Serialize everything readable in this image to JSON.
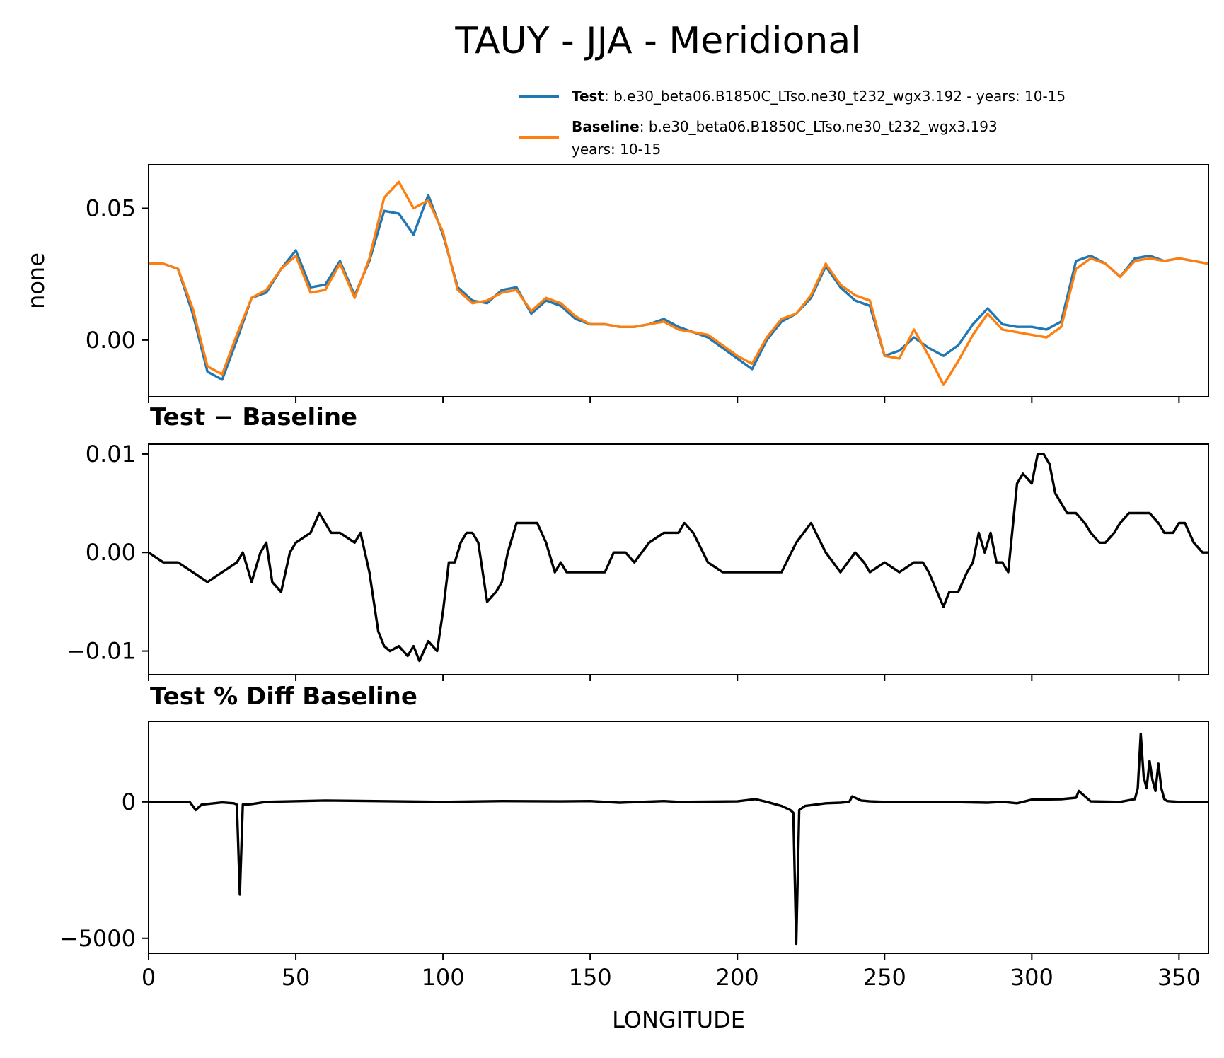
{
  "figure": {
    "title": "TAUY - JJA - Meridional"
  },
  "colors": {
    "test": "#1f77b4",
    "baseline": "#ff7f0e",
    "diff": "#000000"
  },
  "legend": {
    "test_bold": "Test",
    "test_text": ": b.e30_beta06.B1850C_LTso.ne30_t232_wgx3.192 - years: 10-15",
    "baseline_bold": "Baseline",
    "baseline_text": ": b.e30_beta06.B1850C_LTso.ne30_t232_wgx3.193",
    "baseline_text2": "years: 10-15"
  },
  "chart_data": [
    {
      "type": "line",
      "ylabel": "none",
      "xlim": [
        0,
        360
      ],
      "ylim": [
        -0.0215,
        0.0665
      ],
      "yticks": [
        0.0,
        0.05
      ],
      "ytick_labels": [
        "0.00",
        "0.05"
      ],
      "series": [
        {
          "name": "Test",
          "x": [
            0,
            5,
            10,
            15,
            20,
            25,
            30,
            35,
            40,
            45,
            50,
            55,
            60,
            65,
            70,
            75,
            80,
            85,
            90,
            95,
            100,
            105,
            110,
            115,
            120,
            125,
            130,
            135,
            140,
            145,
            150,
            155,
            160,
            165,
            170,
            175,
            180,
            185,
            190,
            195,
            200,
            205,
            210,
            215,
            220,
            225,
            230,
            235,
            240,
            245,
            250,
            255,
            260,
            265,
            270,
            275,
            280,
            285,
            290,
            295,
            300,
            305,
            310,
            315,
            320,
            325,
            330,
            335,
            340,
            345,
            350,
            355,
            360
          ],
          "values": [
            0.029,
            0.029,
            0.027,
            0.01,
            -0.012,
            -0.015,
            0.0,
            0.016,
            0.018,
            0.027,
            0.034,
            0.02,
            0.021,
            0.03,
            0.017,
            0.03,
            0.049,
            0.048,
            0.04,
            0.055,
            0.04,
            0.02,
            0.015,
            0.014,
            0.019,
            0.02,
            0.01,
            0.015,
            0.013,
            0.008,
            0.006,
            0.006,
            0.005,
            0.005,
            0.006,
            0.008,
            0.005,
            0.003,
            0.001,
            -0.003,
            -0.007,
            -0.011,
            0.0,
            0.007,
            0.01,
            0.016,
            0.028,
            0.02,
            0.015,
            0.013,
            -0.006,
            -0.004,
            0.001,
            -0.003,
            -0.006,
            -0.002,
            0.006,
            0.012,
            0.006,
            0.005,
            0.005,
            0.004,
            0.007,
            0.03,
            0.032,
            0.029,
            0.024,
            0.031,
            0.032,
            0.03,
            0.031,
            0.03,
            0.029
          ]
        },
        {
          "name": "Baseline",
          "x": [
            0,
            5,
            10,
            15,
            20,
            25,
            30,
            35,
            40,
            45,
            50,
            55,
            60,
            65,
            70,
            75,
            80,
            85,
            90,
            95,
            100,
            105,
            110,
            115,
            120,
            125,
            130,
            135,
            140,
            145,
            150,
            155,
            160,
            165,
            170,
            175,
            180,
            185,
            190,
            195,
            200,
            205,
            210,
            215,
            220,
            225,
            230,
            235,
            240,
            245,
            250,
            255,
            260,
            265,
            270,
            275,
            280,
            285,
            290,
            295,
            300,
            305,
            310,
            315,
            320,
            325,
            330,
            335,
            340,
            345,
            350,
            355,
            360
          ],
          "values": [
            0.029,
            0.029,
            0.027,
            0.012,
            -0.01,
            -0.013,
            0.002,
            0.016,
            0.019,
            0.027,
            0.032,
            0.018,
            0.019,
            0.029,
            0.016,
            0.031,
            0.054,
            0.06,
            0.05,
            0.053,
            0.041,
            0.019,
            0.014,
            0.015,
            0.018,
            0.019,
            0.011,
            0.016,
            0.014,
            0.009,
            0.006,
            0.006,
            0.005,
            0.005,
            0.006,
            0.007,
            0.004,
            0.003,
            0.002,
            -0.002,
            -0.006,
            -0.009,
            0.001,
            0.008,
            0.01,
            0.017,
            0.029,
            0.021,
            0.017,
            0.015,
            -0.006,
            -0.007,
            0.004,
            -0.006,
            -0.017,
            -0.008,
            0.002,
            0.01,
            0.004,
            0.003,
            0.002,
            0.001,
            0.005,
            0.027,
            0.031,
            0.029,
            0.024,
            0.03,
            0.031,
            0.03,
            0.031,
            0.03,
            0.029
          ]
        }
      ]
    },
    {
      "type": "line",
      "title": "Test − Baseline",
      "xlim": [
        0,
        360
      ],
      "ylim": [
        -0.0124,
        0.011
      ],
      "yticks": [
        -0.01,
        0.0,
        0.01
      ],
      "ytick_labels": [
        "−0.01",
        "0.00",
        "0.01"
      ],
      "series": [
        {
          "name": "Test − Baseline",
          "x": [
            0,
            5,
            10,
            15,
            20,
            25,
            30,
            32,
            35,
            38,
            40,
            42,
            45,
            48,
            50,
            55,
            58,
            60,
            62,
            65,
            70,
            72,
            75,
            78,
            80,
            82,
            85,
            88,
            90,
            92,
            95,
            98,
            100,
            102,
            104,
            106,
            108,
            110,
            112,
            115,
            118,
            120,
            122,
            125,
            128,
            130,
            132,
            135,
            138,
            140,
            142,
            145,
            148,
            150,
            152,
            155,
            158,
            160,
            162,
            165,
            170,
            175,
            177,
            180,
            182,
            185,
            190,
            195,
            200,
            205,
            207,
            210,
            215,
            220,
            225,
            230,
            235,
            240,
            243,
            245,
            250,
            255,
            260,
            263,
            265,
            270,
            272,
            275,
            278,
            280,
            282,
            284,
            286,
            288,
            290,
            292,
            295,
            297,
            300,
            302,
            304,
            306,
            308,
            310,
            312,
            315,
            318,
            320,
            323,
            325,
            328,
            330,
            333,
            335,
            338,
            340,
            343,
            345,
            348,
            350,
            352,
            355,
            358,
            360
          ],
          "values": [
            0.0,
            -0.001,
            -0.001,
            -0.002,
            -0.003,
            -0.002,
            -0.001,
            0.0,
            -0.003,
            0.0,
            0.001,
            -0.003,
            -0.004,
            0.0,
            0.001,
            0.002,
            0.004,
            0.003,
            0.002,
            0.002,
            0.001,
            0.002,
            -0.002,
            -0.008,
            -0.0095,
            -0.01,
            -0.0095,
            -0.0105,
            -0.0095,
            -0.011,
            -0.009,
            -0.01,
            -0.006,
            -0.001,
            -0.001,
            0.001,
            0.002,
            0.002,
            0.001,
            -0.005,
            -0.004,
            -0.003,
            0.0,
            0.003,
            0.003,
            0.003,
            0.003,
            0.001,
            -0.002,
            -0.001,
            -0.002,
            -0.002,
            -0.002,
            -0.002,
            -0.002,
            -0.002,
            0.0,
            0.0,
            0.0,
            -0.001,
            0.001,
            0.002,
            0.002,
            0.002,
            0.003,
            0.002,
            -0.001,
            -0.002,
            -0.002,
            -0.002,
            -0.002,
            -0.002,
            -0.002,
            0.001,
            0.003,
            0.0,
            -0.002,
            0.0,
            -0.001,
            -0.002,
            -0.001,
            -0.002,
            -0.001,
            -0.001,
            -0.002,
            -0.0055,
            -0.004,
            -0.004,
            -0.002,
            -0.001,
            0.002,
            0.0,
            0.002,
            -0.001,
            -0.001,
            -0.002,
            0.007,
            0.008,
            0.007,
            0.01,
            0.01,
            0.009,
            0.006,
            0.005,
            0.004,
            0.004,
            0.003,
            0.002,
            0.001,
            0.001,
            0.002,
            0.003,
            0.004,
            0.004,
            0.004,
            0.004,
            0.003,
            0.002,
            0.002,
            0.003,
            0.003,
            0.001,
            0.0,
            0.0
          ]
        }
      ]
    },
    {
      "type": "line",
      "title": "Test % Diff Baseline",
      "xlabel": "LONGITUDE",
      "xlim": [
        0,
        360
      ],
      "ylim": [
        -5550,
        2950
      ],
      "yticks": [
        -5000,
        0
      ],
      "ytick_labels": [
        "−5000",
        "0"
      ],
      "xticks": [
        0,
        50,
        100,
        150,
        200,
        250,
        300,
        350
      ],
      "xtick_labels": [
        "0",
        "50",
        "100",
        "150",
        "200",
        "250",
        "300",
        "350"
      ],
      "series": [
        {
          "name": "Test % Diff Baseline",
          "x": [
            0,
            14,
            15,
            16,
            18,
            25,
            29,
            30,
            31,
            32,
            33,
            35,
            40,
            60,
            100,
            120,
            140,
            150,
            160,
            175,
            180,
            200,
            206,
            210,
            215,
            218,
            219,
            220,
            221,
            223,
            230,
            235,
            238,
            239,
            240,
            242,
            245,
            250,
            270,
            285,
            290,
            295,
            300,
            310,
            315,
            316,
            317,
            320,
            330,
            335,
            336,
            337,
            338,
            339,
            340,
            341,
            342,
            343,
            344,
            345,
            346,
            350,
            360
          ],
          "values": [
            0,
            -10,
            -150,
            -300,
            -100,
            -20,
            -50,
            -100,
            -3400,
            -100,
            -100,
            -80,
            0,
            50,
            0,
            30,
            20,
            30,
            -30,
            30,
            0,
            20,
            100,
            0,
            -150,
            -300,
            -400,
            -5200,
            -300,
            -150,
            -50,
            -30,
            0,
            200,
            150,
            50,
            20,
            0,
            0,
            -30,
            0,
            -50,
            80,
            100,
            150,
            400,
            300,
            20,
            0,
            100,
            500,
            2500,
            900,
            500,
            1500,
            800,
            400,
            1400,
            500,
            100,
            30,
            0,
            0
          ]
        }
      ]
    }
  ]
}
